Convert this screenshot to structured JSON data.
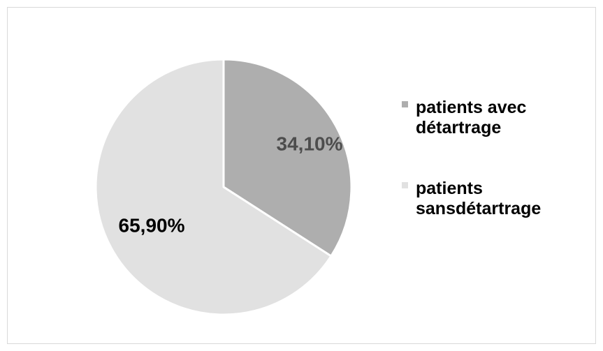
{
  "chart_data": {
    "type": "pie",
    "title": "",
    "slices": [
      {
        "label": "patients avec détartrage",
        "value": 34.1,
        "display": "34,10%",
        "color": "#aeaeae",
        "label_color": "#4d4d4d"
      },
      {
        "label": "patients sansdétartrage",
        "value": 65.9,
        "display": "65,90%",
        "color": "#e1e1e1",
        "label_color": "#000000"
      }
    ],
    "legend_position": "right",
    "start_angle": "12 o'clock, clockwise"
  }
}
